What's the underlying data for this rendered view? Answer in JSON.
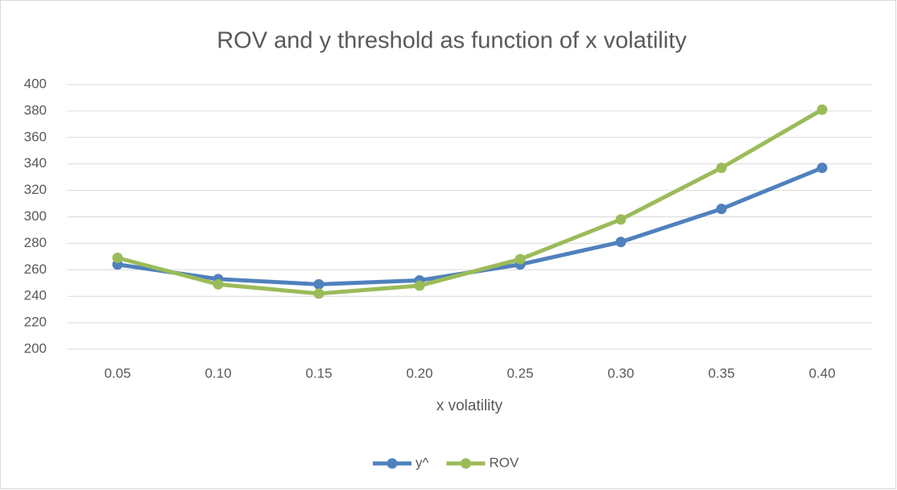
{
  "chart_data": {
    "type": "line",
    "title": "ROV and y threshold as function of x volatility",
    "x_label": "x volatility",
    "categories": [
      "0.05",
      "0.10",
      "0.15",
      "0.20",
      "0.25",
      "0.30",
      "0.35",
      "0.40"
    ],
    "series": [
      {
        "name": "y^",
        "color": "#4f81bd",
        "values": [
          264,
          253,
          249,
          252,
          264,
          281,
          306,
          337
        ]
      },
      {
        "name": "ROV",
        "color": "#9bbb59",
        "values": [
          269,
          249,
          242,
          248,
          268,
          298,
          337,
          381
        ]
      }
    ],
    "ylim": [
      200,
      400
    ],
    "yticks": [
      200,
      220,
      240,
      260,
      280,
      300,
      320,
      340,
      360,
      380,
      400
    ],
    "grid": true,
    "legend": "bottom"
  }
}
